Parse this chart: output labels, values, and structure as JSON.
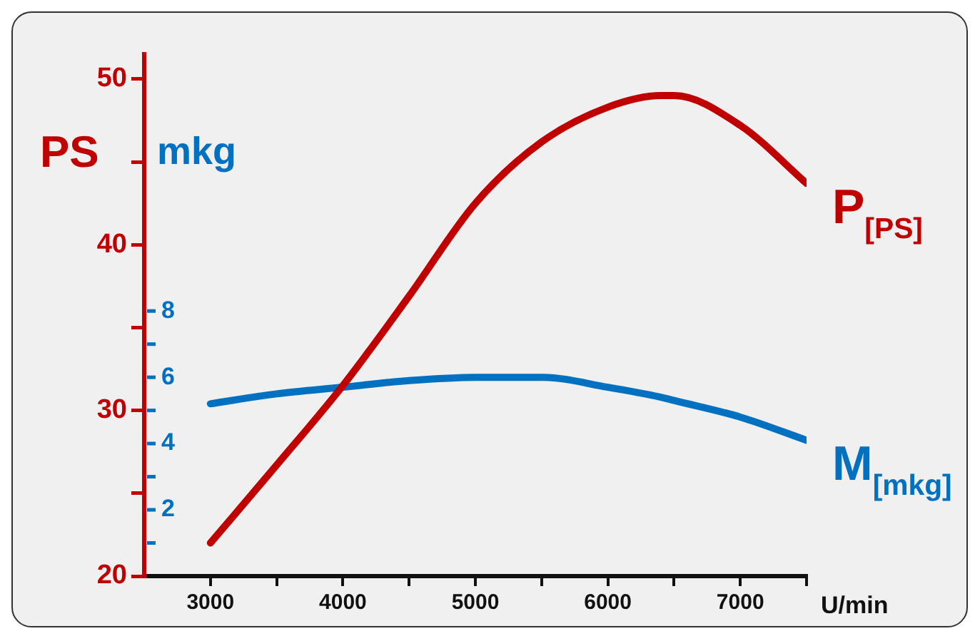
{
  "chart_data": {
    "type": "line",
    "xlabel": "U/min",
    "ylabel": "PS",
    "y2label": "mkg",
    "x": [
      3000,
      3500,
      4000,
      4500,
      5000,
      5500,
      6000,
      6400,
      6500,
      7000,
      7500
    ],
    "series": [
      {
        "name": "P$_{[PS]}$",
        "color": "#c00000",
        "values": [
          22.0,
          26.7,
          31.5,
          36.9,
          42.5,
          46.2,
          48.3,
          49.0,
          49.0,
          47.2,
          43.7
        ]
      },
      {
        "name": "M$_{[mkg]}$",
        "color": "#0070c0",
        "axis": "y2",
        "values": [
          5.2,
          5.5,
          5.7,
          5.9,
          6.0,
          6.0,
          5.7,
          5.4,
          5.3,
          4.8,
          4.1
        ]
      }
    ],
    "xlim": [
      2500,
      7500
    ],
    "xticks": [
      3000,
      {
        "value": 3500,
        "label": null
      },
      4000,
      {
        "value": 4500,
        "label": null
      },
      5000,
      {
        "value": 5500,
        "label": null
      },
      6000,
      {
        "value": 6500,
        "label": null
      },
      7000,
      {
        "value": 7500,
        "label": null
      }
    ],
    "ylim": [
      20,
      51.5
    ],
    "yticks": [
      20,
      {
        "value": 25,
        "label": null
      },
      30,
      {
        "value": 35,
        "label": null
      },
      40,
      {
        "value": 45,
        "label": null
      },
      50
    ],
    "y2lim": [
      0,
      15.75
    ],
    "y2ticks": [
      {
        "value": 1,
        "label": null
      },
      2,
      {
        "value": 3,
        "label": null
      },
      4,
      {
        "value": 5,
        "label": null
      },
      6,
      {
        "value": 7,
        "label": null
      },
      8
    ],
    "grid": false,
    "legend": false,
    "marker": "none",
    "line_style": "solid"
  }
}
